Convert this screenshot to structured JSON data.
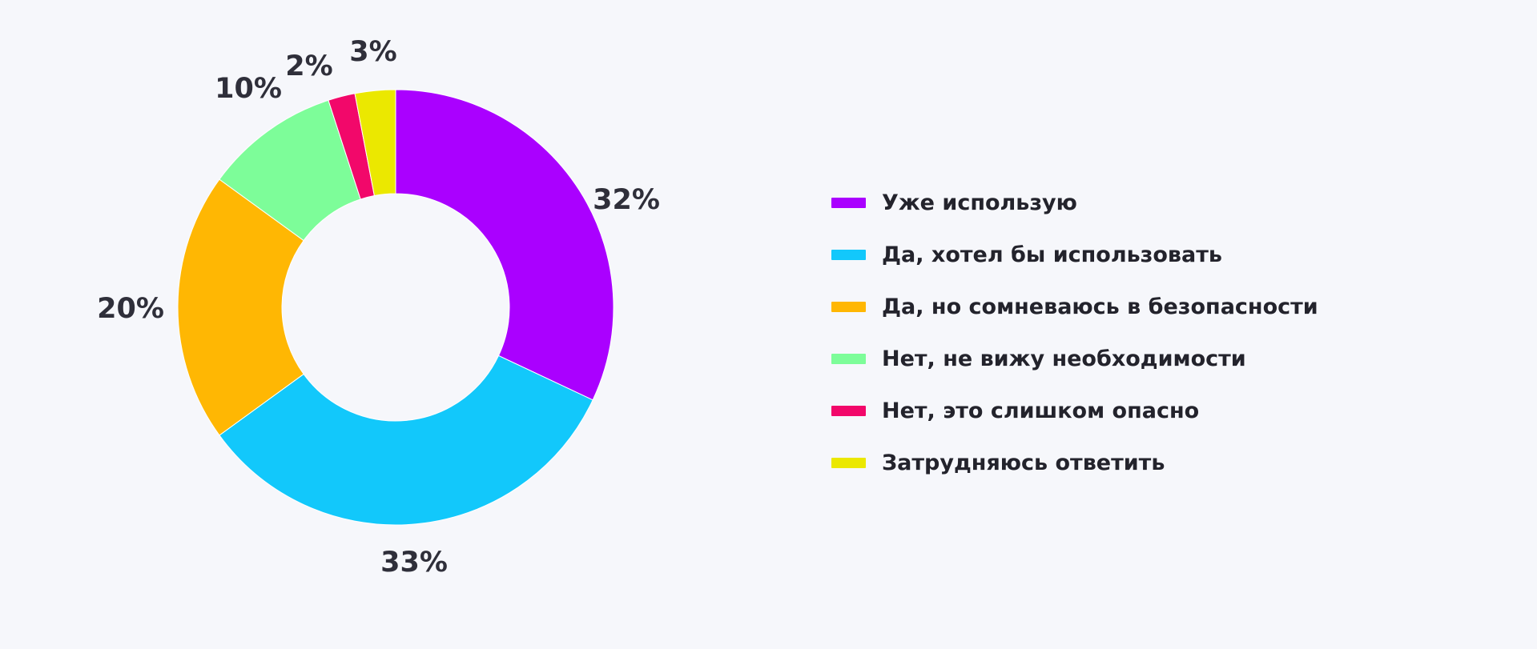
{
  "chart_data": {
    "type": "pie",
    "donut": true,
    "title": "",
    "legend_position": "right",
    "start_angle": "top",
    "direction": "clockwise",
    "slices": [
      {
        "label": "Уже использую",
        "value": 32,
        "display": "32%",
        "color": "#aa00ff"
      },
      {
        "label": "Да, хотел бы использовать",
        "value": 33,
        "display": "33%",
        "color": "#12c8fb"
      },
      {
        "label": "Да, но сомневаюсь в безопасности",
        "value": 20,
        "display": "20%",
        "color": "#ffb703"
      },
      {
        "label": "Нет, не вижу необходимости",
        "value": 10,
        "display": "10%",
        "color": "#7dfd99"
      },
      {
        "label": "Нет, это слишком опасно",
        "value": 2,
        "display": "2%",
        "color": "#f2086a"
      },
      {
        "label": "Затрудняюсь ответить",
        "value": 3,
        "display": "3%",
        "color": "#ebe800"
      }
    ]
  }
}
